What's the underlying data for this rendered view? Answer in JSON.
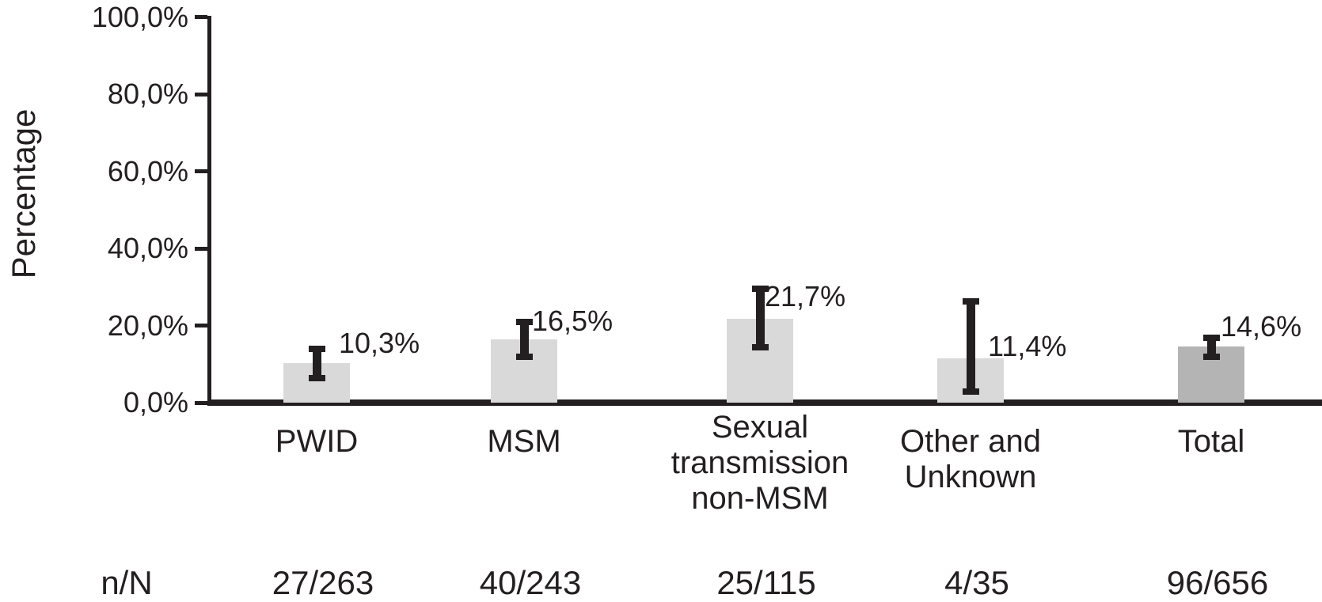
{
  "chart_data": {
    "type": "bar",
    "title": "",
    "xlabel": "",
    "ylabel": "Percentage",
    "ylim": [
      0,
      100
    ],
    "grid": false,
    "legend": null,
    "decimal_separator": ",",
    "y_tick_values": [
      100,
      80,
      60,
      40,
      20,
      0
    ],
    "y_tick_labels": [
      "100,0%",
      "80,0%",
      "60,0%",
      "40,0%",
      "20,0%",
      "0,0%"
    ],
    "categories": [
      "PWID",
      "MSM",
      "Sexual transmission non-MSM",
      "Other and Unknown",
      "Total"
    ],
    "category_label_lines": [
      [
        "PWID"
      ],
      [
        "MSM"
      ],
      [
        "Sexual",
        "transmission",
        "non-MSM"
      ],
      [
        "Other and",
        "Unknown"
      ],
      [
        "Total"
      ]
    ],
    "values": [
      10.3,
      16.5,
      21.7,
      11.4,
      14.6
    ],
    "value_labels": [
      "10,3%",
      "16,5%",
      "21,7%",
      "11,4%",
      "14,6%"
    ],
    "error_bars": {
      "low": [
        5.5,
        11.0,
        13.5,
        2.0,
        11.0
      ],
      "high": [
        14.7,
        21.8,
        30.3,
        27.0,
        17.7
      ]
    },
    "counts_row": {
      "header": "n/N",
      "values": [
        "27/263",
        "40/243",
        "25/115",
        "4/35",
        "96/656"
      ]
    },
    "colors": {
      "bar_fill": "#d9d9d9",
      "total_bar_fill": "#b4b4b4",
      "error_bar": "#231f20",
      "axis": "#231f20",
      "text": "#231f20"
    }
  }
}
